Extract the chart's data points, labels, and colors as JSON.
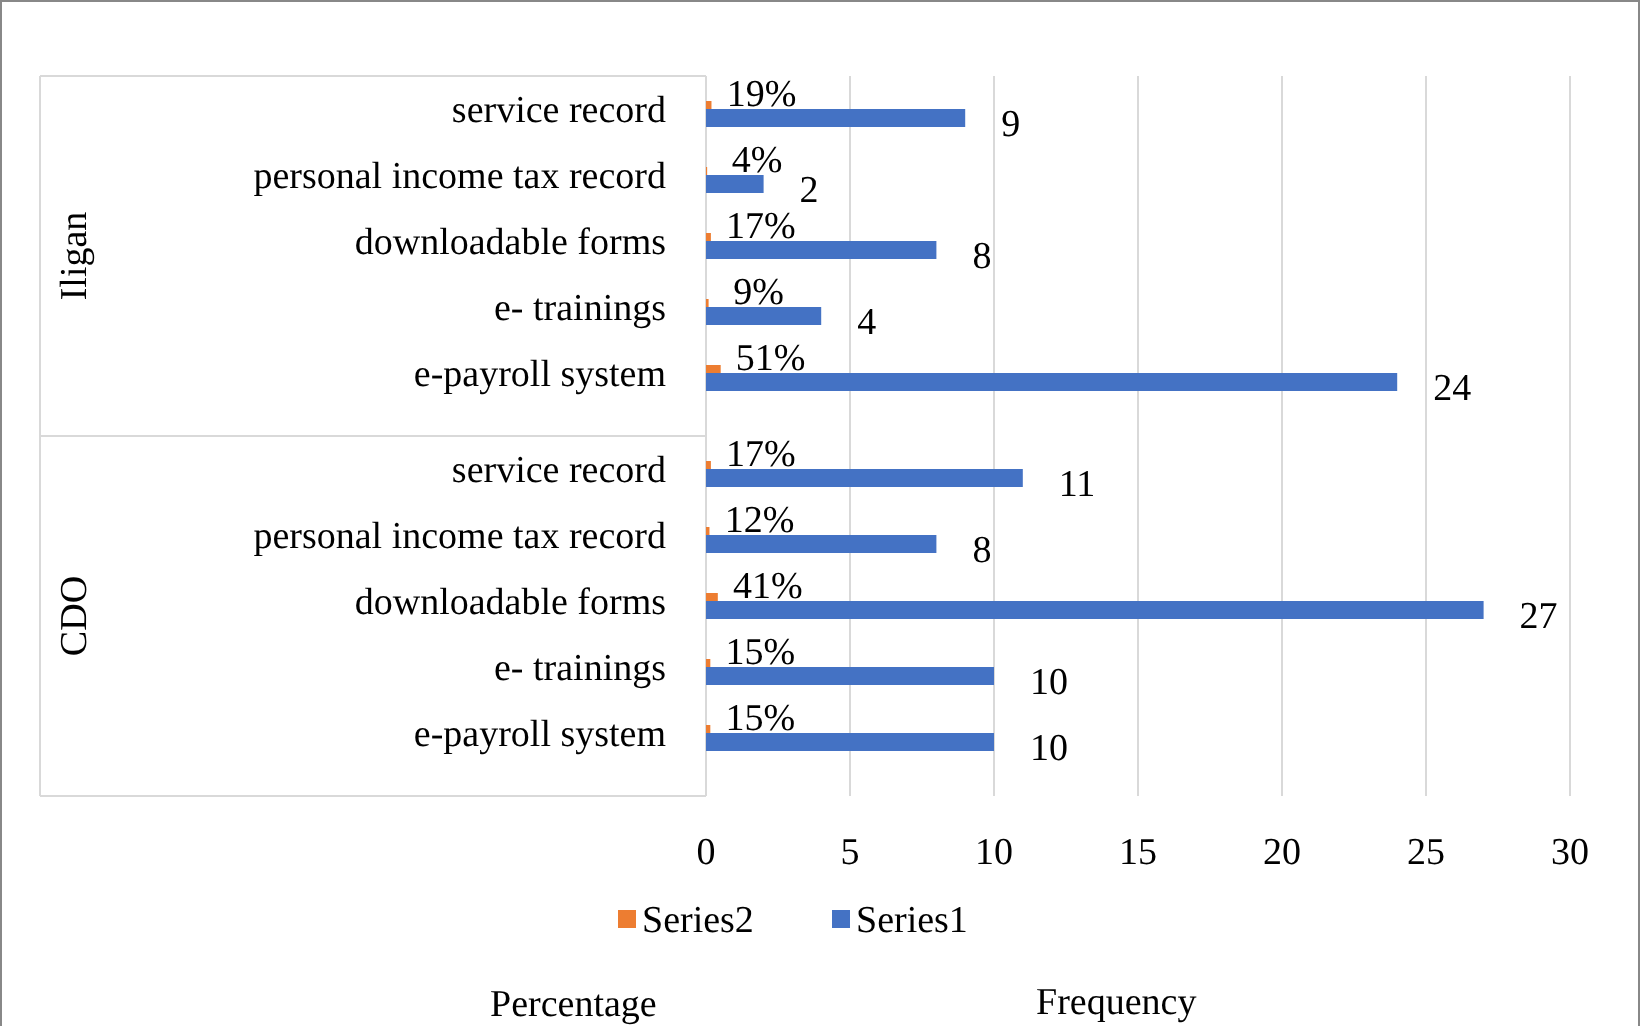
{
  "chart_data": {
    "type": "bar",
    "orientation": "horizontal",
    "xlabel": "Frequency",
    "categories": [
      "service record",
      "personal income tax record",
      "downloadable forms",
      "e- trainings",
      "e-payroll system",
      "service record",
      "personal income tax record",
      "downloadable forms",
      "e- trainings",
      "e-payroll system"
    ],
    "series": [
      {
        "name": "Series2",
        "color": "#ed7d31",
        "values": [
          0.19,
          0.04,
          0.17,
          0.09,
          0.51,
          0.17,
          0.12,
          0.41,
          0.15,
          0.15
        ],
        "value_labels": [
          "19%",
          "4%",
          "17%",
          "9%",
          "51%",
          "17%",
          "12%",
          "41%",
          "15%",
          "15%"
        ]
      },
      {
        "name": "Series1",
        "color": "#4472c4",
        "values": [
          9,
          2,
          8,
          4,
          24,
          11,
          8,
          27,
          10,
          10
        ],
        "value_labels": [
          "9",
          "2",
          "8",
          "4",
          "24",
          "11",
          "8",
          "27",
          "10",
          "10"
        ]
      }
    ],
    "annotations": [
      "Iligan",
      "CDO",
      "Percentage"
    ],
    "xlim": [
      0,
      30
    ],
    "xticks": [
      0,
      5,
      10,
      15,
      20,
      25,
      30
    ],
    "grid": "x",
    "legend": "bottom"
  }
}
